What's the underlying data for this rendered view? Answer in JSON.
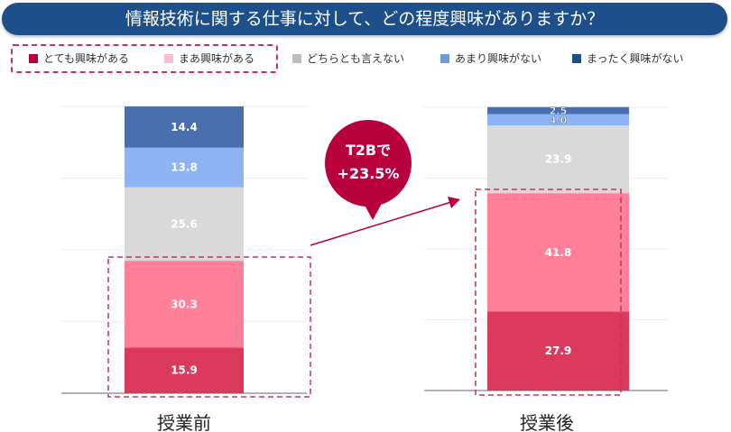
{
  "title": "情報技術に関する仕事に対して、どの程度興味がありますか？",
  "chart_data": {
    "type": "bar",
    "stacked": true,
    "title": "情報技術に関する仕事に対して、どの程度興味がありますか？",
    "categories": [
      "授業前",
      "授業後"
    ],
    "series": [
      {
        "name": "とても興味がある",
        "color": "#dc3a5c",
        "legend_color": "#b8003d",
        "values": [
          15.9,
          27.9
        ]
      },
      {
        "name": "まあ興味がある",
        "color": "#ff8098",
        "legend_color": "#f9bcd0",
        "values": [
          30.3,
          41.8
        ]
      },
      {
        "name": "どちらとも言えない",
        "color": "#d9d9d9",
        "legend_color": "#bdbdbd",
        "values": [
          25.6,
          23.9
        ]
      },
      {
        "name": "あまり興味がない",
        "color": "#8fb4f5",
        "legend_color": "#7198d8",
        "values": [
          13.8,
          4.0
        ]
      },
      {
        "name": "まったく興味がない",
        "color": "#4a6fae",
        "legend_color": "#1d4f8a",
        "values": [
          14.4,
          2.5
        ]
      }
    ],
    "ylim": [
      0,
      100
    ],
    "legend": "top",
    "annotation": {
      "line1": "T2Bで",
      "line2": "+23.5%"
    }
  }
}
